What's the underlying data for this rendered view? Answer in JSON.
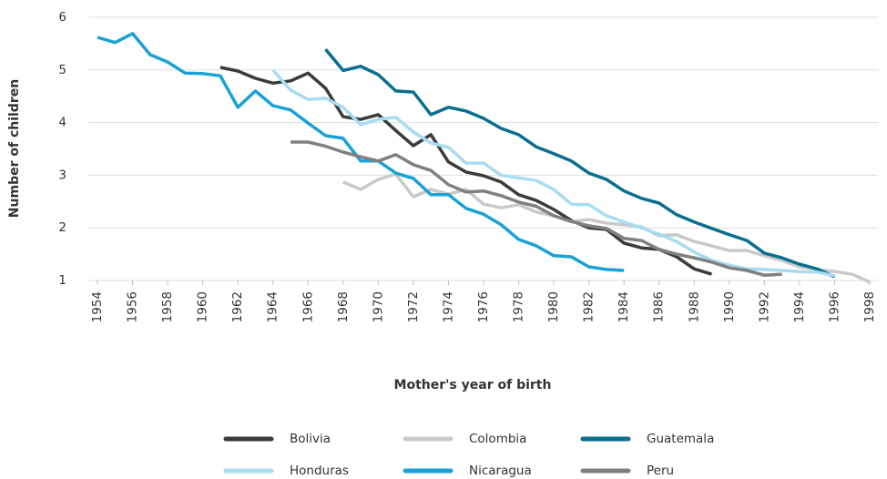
{
  "chart_data": {
    "type": "line",
    "x_label": "Mother's year of birth",
    "y_label": "Number of children",
    "x": [
      1954,
      1955,
      1956,
      1957,
      1958,
      1959,
      1960,
      1961,
      1962,
      1963,
      1964,
      1965,
      1966,
      1967,
      1968,
      1969,
      1970,
      1971,
      1972,
      1973,
      1974,
      1975,
      1976,
      1977,
      1978,
      1979,
      1980,
      1981,
      1982,
      1983,
      1984,
      1985,
      1986,
      1987,
      1988,
      1989,
      1990,
      1991,
      1992,
      1993,
      1994,
      1995,
      1996,
      1997,
      1998
    ],
    "xlim": [
      1953.5,
      1998.5
    ],
    "xticks": [
      1954,
      1956,
      1958,
      1960,
      1962,
      1964,
      1966,
      1968,
      1970,
      1972,
      1974,
      1976,
      1978,
      1980,
      1982,
      1984,
      1986,
      1988,
      1990,
      1992,
      1994,
      1996,
      1998
    ],
    "ylim": [
      1,
      6
    ],
    "yticks": [
      1,
      2,
      3,
      4,
      5,
      6
    ],
    "grid": true,
    "legend": "bottom",
    "series": [
      {
        "name": "Bolivia",
        "color": "#3b3b3c",
        "values": [
          null,
          null,
          null,
          null,
          null,
          null,
          null,
          5.05,
          4.98,
          4.84,
          4.75,
          4.79,
          4.94,
          4.65,
          4.11,
          4.06,
          4.15,
          3.85,
          3.56,
          3.77,
          3.25,
          3.06,
          2.99,
          2.87,
          2.63,
          2.52,
          2.35,
          2.14,
          2.0,
          1.97,
          1.71,
          1.62,
          1.59,
          1.45,
          1.22,
          1.12,
          null,
          null,
          null,
          null,
          null,
          null,
          null,
          null,
          null
        ]
      },
      {
        "name": "Colombia",
        "color": "#c9c9c9",
        "values": [
          null,
          null,
          null,
          null,
          null,
          null,
          null,
          null,
          null,
          null,
          null,
          null,
          null,
          null,
          2.87,
          2.73,
          2.92,
          3.02,
          2.59,
          2.73,
          2.64,
          2.73,
          2.45,
          2.38,
          2.44,
          2.3,
          2.23,
          2.12,
          2.16,
          2.09,
          2.06,
          2.02,
          1.85,
          1.87,
          1.74,
          1.66,
          1.57,
          1.57,
          1.47,
          1.38,
          1.26,
          1.21,
          1.17,
          1.12,
          0.97
        ]
      },
      {
        "name": "Guatemala",
        "color": "#0a6e8e",
        "values": [
          null,
          null,
          null,
          null,
          null,
          null,
          null,
          null,
          null,
          null,
          null,
          null,
          null,
          5.39,
          4.99,
          5.07,
          4.91,
          4.6,
          4.58,
          4.15,
          4.29,
          4.22,
          4.08,
          3.89,
          3.77,
          3.54,
          3.41,
          3.27,
          3.04,
          2.92,
          2.7,
          2.56,
          2.47,
          2.25,
          2.11,
          1.99,
          1.87,
          1.76,
          1.52,
          1.43,
          1.31,
          1.22,
          1.07,
          null,
          null
        ]
      },
      {
        "name": "Honduras",
        "color": "#a7dcf1",
        "values": [
          null,
          null,
          null,
          null,
          null,
          null,
          null,
          null,
          null,
          null,
          5.0,
          4.62,
          4.44,
          4.46,
          4.29,
          3.96,
          4.06,
          4.1,
          3.82,
          3.61,
          3.53,
          3.23,
          3.23,
          3.0,
          2.95,
          2.9,
          2.73,
          2.45,
          2.44,
          2.23,
          2.11,
          2.0,
          1.88,
          1.74,
          1.54,
          1.38,
          1.29,
          1.22,
          1.21,
          1.19,
          1.17,
          1.16,
          1.09,
          null,
          null
        ]
      },
      {
        "name": "Nicaragua",
        "color": "#1aa1d7",
        "values": [
          5.62,
          5.52,
          5.69,
          5.29,
          5.15,
          4.94,
          4.93,
          4.89,
          4.29,
          4.6,
          4.32,
          4.24,
          3.99,
          3.75,
          3.7,
          3.27,
          3.27,
          3.04,
          2.94,
          2.63,
          2.63,
          2.37,
          2.26,
          2.06,
          1.78,
          1.66,
          1.47,
          1.45,
          1.26,
          1.21,
          1.19,
          null,
          null,
          null,
          null,
          null,
          null,
          null,
          null,
          null,
          null,
          null,
          null,
          null,
          null
        ]
      },
      {
        "name": "Peru",
        "color": "#808080",
        "values": [
          null,
          null,
          null,
          null,
          null,
          null,
          null,
          null,
          null,
          null,
          null,
          3.63,
          3.63,
          3.55,
          3.44,
          3.35,
          3.27,
          3.39,
          3.2,
          3.09,
          2.82,
          2.68,
          2.7,
          2.61,
          2.49,
          2.41,
          2.23,
          2.12,
          2.04,
          1.99,
          1.8,
          1.76,
          1.59,
          1.5,
          1.43,
          1.35,
          1.24,
          1.19,
          1.1,
          1.12,
          null,
          null,
          null,
          null,
          null
        ]
      }
    ]
  }
}
